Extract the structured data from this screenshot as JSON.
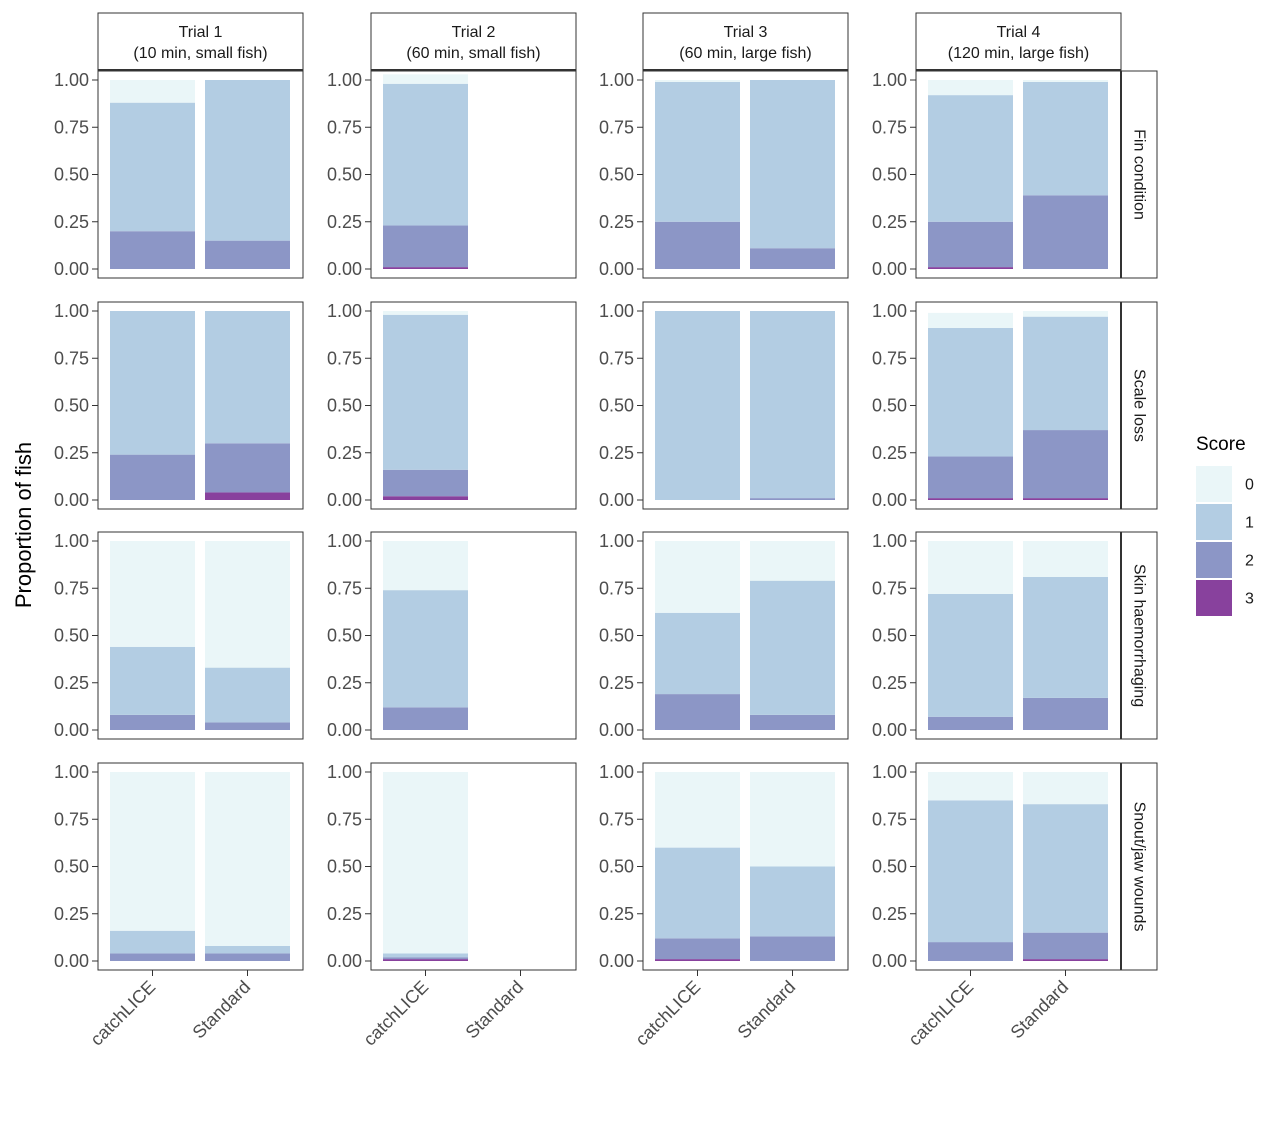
{
  "chart_data": {
    "type": "bar",
    "stacked": true,
    "ylabel": "Proportion of fish",
    "xlabel": "",
    "ylim": [
      0,
      1
    ],
    "y_ticks": [
      "0.00",
      "0.25",
      "0.50",
      "0.75",
      "1.00"
    ],
    "categories": [
      "catchLICE",
      "Standard"
    ],
    "trials": [
      {
        "line1": "Trial 1",
        "line2": "(10 min, small fish)"
      },
      {
        "line1": "Trial 2",
        "line2": "(60 min, small fish)"
      },
      {
        "line1": "Trial 3",
        "line2": "(60 min, large fish)"
      },
      {
        "line1": "Trial 4",
        "line2": "(120 min, large fish)"
      }
    ],
    "metrics": [
      "Fin condition",
      "Scale loss",
      "Skin haemorrhaging",
      "Snout/jaw wounds"
    ],
    "legend": {
      "title": "Score",
      "position": "right",
      "items": [
        {
          "label": "0",
          "color": "#eaf6f8"
        },
        {
          "label": "1",
          "color": "#b3cde3"
        },
        {
          "label": "2",
          "color": "#8c96c6"
        },
        {
          "label": "3",
          "color": "#88419d"
        }
      ]
    },
    "stack_order_bottom_to_top": [
      "3",
      "2",
      "1",
      "0"
    ],
    "panels": [
      [
        {
          "catchLICE": {
            "0": 0.12,
            "1": 0.68,
            "2": 0.2,
            "3": 0.0
          },
          "Standard": {
            "0": 0.0,
            "1": 0.85,
            "2": 0.15,
            "3": 0.0
          }
        },
        {
          "catchLICE": {
            "0": 0.05,
            "1": 0.75,
            "2": 0.22,
            "3": 0.01
          },
          "Standard": null
        },
        {
          "catchLICE": {
            "0": 0.01,
            "1": 0.74,
            "2": 0.25,
            "3": 0.0
          },
          "Standard": {
            "0": 0.0,
            "1": 0.89,
            "2": 0.11,
            "3": 0.0
          }
        },
        {
          "catchLICE": {
            "0": 0.08,
            "1": 0.67,
            "2": 0.24,
            "3": 0.01
          },
          "Standard": {
            "0": 0.01,
            "1": 0.6,
            "2": 0.39,
            "3": 0.0
          }
        }
      ],
      [
        {
          "catchLICE": {
            "0": 0.0,
            "1": 0.76,
            "2": 0.24,
            "3": 0.0
          },
          "Standard": {
            "0": 0.0,
            "1": 0.7,
            "2": 0.26,
            "3": 0.04
          }
        },
        {
          "catchLICE": {
            "0": 0.02,
            "1": 0.82,
            "2": 0.14,
            "3": 0.02
          },
          "Standard": null
        },
        {
          "catchLICE": {
            "0": 0.0,
            "1": 1.0,
            "2": 0.0,
            "3": 0.0
          },
          "Standard": {
            "0": 0.0,
            "1": 0.99,
            "2": 0.01,
            "3": 0.0
          }
        },
        {
          "catchLICE": {
            "0": 0.08,
            "1": 0.68,
            "2": 0.22,
            "3": 0.01
          },
          "Standard": {
            "0": 0.03,
            "1": 0.6,
            "2": 0.36,
            "3": 0.01
          }
        }
      ],
      [
        {
          "catchLICE": {
            "0": 0.56,
            "1": 0.36,
            "2": 0.08,
            "3": 0.0
          },
          "Standard": {
            "0": 0.67,
            "1": 0.29,
            "2": 0.04,
            "3": 0.0
          }
        },
        {
          "catchLICE": {
            "0": 0.26,
            "1": 0.62,
            "2": 0.12,
            "3": 0.0
          },
          "Standard": null
        },
        {
          "catchLICE": {
            "0": 0.38,
            "1": 0.43,
            "2": 0.19,
            "3": 0.0
          },
          "Standard": {
            "0": 0.21,
            "1": 0.71,
            "2": 0.08,
            "3": 0.0
          }
        },
        {
          "catchLICE": {
            "0": 0.28,
            "1": 0.65,
            "2": 0.07,
            "3": 0.0
          },
          "Standard": {
            "0": 0.19,
            "1": 0.64,
            "2": 0.17,
            "3": 0.0
          }
        }
      ],
      [
        {
          "catchLICE": {
            "0": 0.84,
            "1": 0.12,
            "2": 0.04,
            "3": 0.0
          },
          "Standard": {
            "0": 0.92,
            "1": 0.04,
            "2": 0.04,
            "3": 0.0
          }
        },
        {
          "catchLICE": {
            "0": 0.96,
            "1": 0.02,
            "2": 0.01,
            "3": 0.01
          },
          "Standard": null
        },
        {
          "catchLICE": {
            "0": 0.4,
            "1": 0.48,
            "2": 0.11,
            "3": 0.01
          },
          "Standard": {
            "0": 0.5,
            "1": 0.37,
            "2": 0.13,
            "3": 0.0
          }
        },
        {
          "catchLICE": {
            "0": 0.15,
            "1": 0.75,
            "2": 0.1,
            "3": 0.0
          },
          "Standard": {
            "0": 0.17,
            "1": 0.68,
            "2": 0.14,
            "3": 0.01
          }
        }
      ]
    ]
  }
}
